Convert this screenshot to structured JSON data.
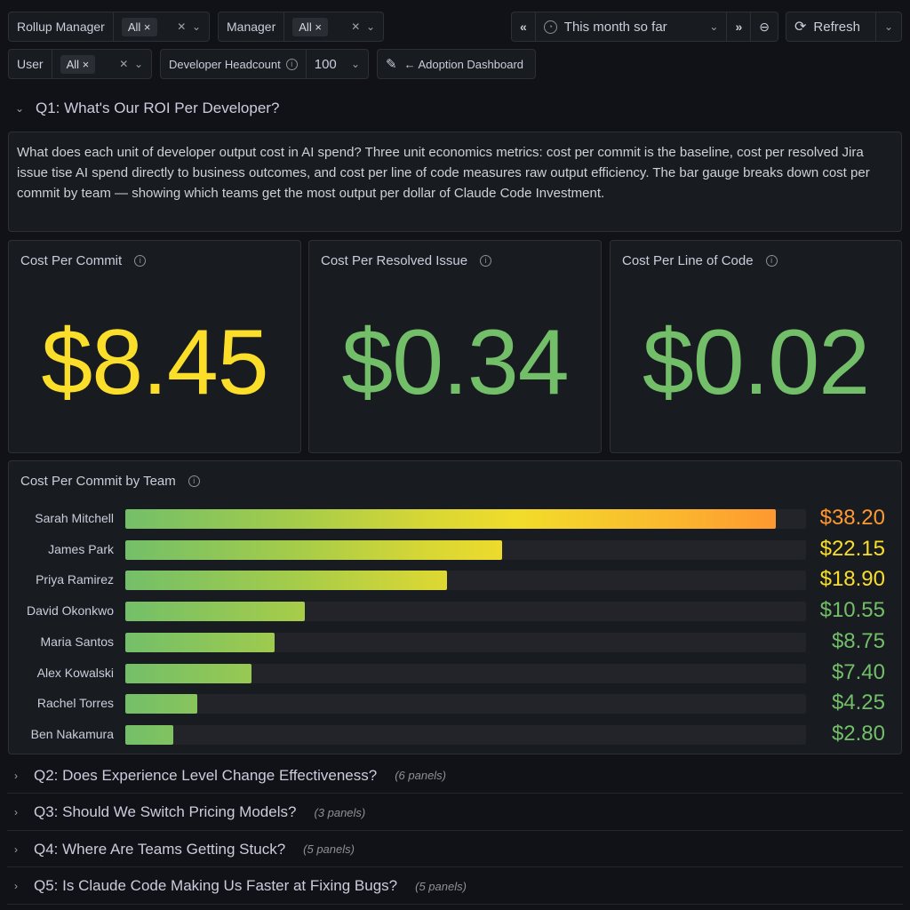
{
  "filters": {
    "rollup_manager": {
      "label": "Rollup Manager",
      "value": "All"
    },
    "manager": {
      "label": "Manager",
      "value": "All"
    },
    "user": {
      "label": "User",
      "value": "All"
    },
    "headcount": {
      "label": "Developer Headcount",
      "value": "100"
    },
    "adoption_link": "← Adoption Dashboard"
  },
  "time": {
    "range": "This month so far",
    "refresh": "Refresh"
  },
  "q1": {
    "title": "Q1: What's Our ROI Per Developer?",
    "description": "What does each unit of developer output cost in AI spend? Three unit economics metrics: cost per commit is the baseline, cost per resolved Jira issue tise AI spend directly to business outcomes, and cost per line of code measures raw output efficiency. The bar gauge breaks down cost per commit by team — showing which teams get the most output per dollar of Claude Code Investment."
  },
  "stats": [
    {
      "title": "Cost Per Commit",
      "value": "$8.45",
      "color": "#fade2a"
    },
    {
      "title": "Cost Per Resolved Issue",
      "value": "$0.34",
      "color": "#73bf69"
    },
    {
      "title": "Cost Per Line of Code",
      "value": "$0.02",
      "color": "#73bf69"
    }
  ],
  "bargauge": {
    "title": "Cost Per Commit by Team",
    "max": 40,
    "rows": [
      {
        "name": "Sarah Mitchell",
        "value": 38.2,
        "label": "$38.20",
        "color": "#ff9830"
      },
      {
        "name": "James Park",
        "value": 22.15,
        "label": "$22.15",
        "color": "#fade2a"
      },
      {
        "name": "Priya Ramirez",
        "value": 18.9,
        "label": "$18.90",
        "color": "#fade2a"
      },
      {
        "name": "David Okonkwo",
        "value": 10.55,
        "label": "$10.55",
        "color": "#73bf69"
      },
      {
        "name": "Maria Santos",
        "value": 8.75,
        "label": "$8.75",
        "color": "#73bf69"
      },
      {
        "name": "Alex Kowalski",
        "value": 7.4,
        "label": "$7.40",
        "color": "#73bf69"
      },
      {
        "name": "Rachel Torres",
        "value": 4.25,
        "label": "$4.25",
        "color": "#73bf69"
      },
      {
        "name": "Ben Nakamura",
        "value": 2.8,
        "label": "$2.80",
        "color": "#73bf69"
      }
    ]
  },
  "rows": [
    {
      "title": "Q2: Does Experience Level Change Effectiveness?",
      "count": "(6 panels)"
    },
    {
      "title": "Q3: Should We Switch Pricing Models?",
      "count": "(3 panels)"
    },
    {
      "title": "Q4: Where Are Teams Getting Stuck?",
      "count": "(5 panels)"
    },
    {
      "title": "Q5: Is Claude Code Making Us Faster at Fixing Bugs?",
      "count": "(5 panels)"
    }
  ]
}
